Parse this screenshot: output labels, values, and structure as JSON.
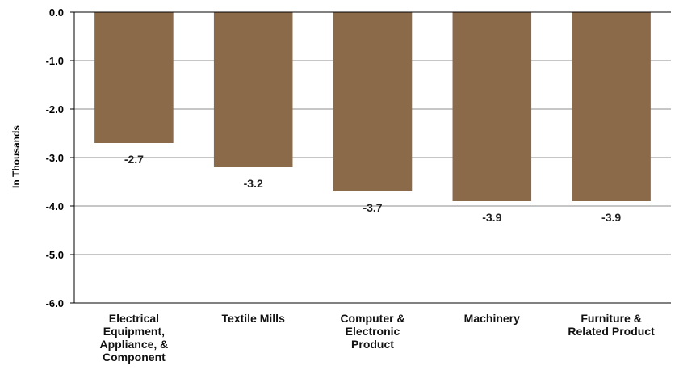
{
  "chart_data": {
    "type": "bar",
    "title": "",
    "xlabel": "",
    "ylabel": "In Thousands",
    "ylim": [
      -6.0,
      0.0
    ],
    "yticks": [
      "0.0",
      "-1.0",
      "-2.0",
      "-3.0",
      "-4.0",
      "-5.0",
      "-6.0"
    ],
    "ytick_values": [
      0,
      -1,
      -2,
      -3,
      -4,
      -5,
      -6
    ],
    "categories": [
      "Electrical Equipment, Appliance, & Component",
      "Textile Mills",
      "Computer & Electronic Product",
      "Machinery",
      "Furniture & Related Product"
    ],
    "category_lines": [
      [
        "Electrical",
        "Equipment,",
        "Appliance, &",
        "Component"
      ],
      [
        "Textile Mills"
      ],
      [
        "Computer &",
        "Electronic",
        "Product"
      ],
      [
        "Machinery"
      ],
      [
        "Furniture &",
        "Related Product"
      ]
    ],
    "values": [
      -2.7,
      -3.2,
      -3.7,
      -3.9,
      -3.9
    ],
    "value_labels": [
      "-2.7",
      "-3.2",
      "-3.7",
      "-3.9",
      "-3.9"
    ],
    "grid": true,
    "legend": "none",
    "bar_color": "#8b6a4a"
  }
}
